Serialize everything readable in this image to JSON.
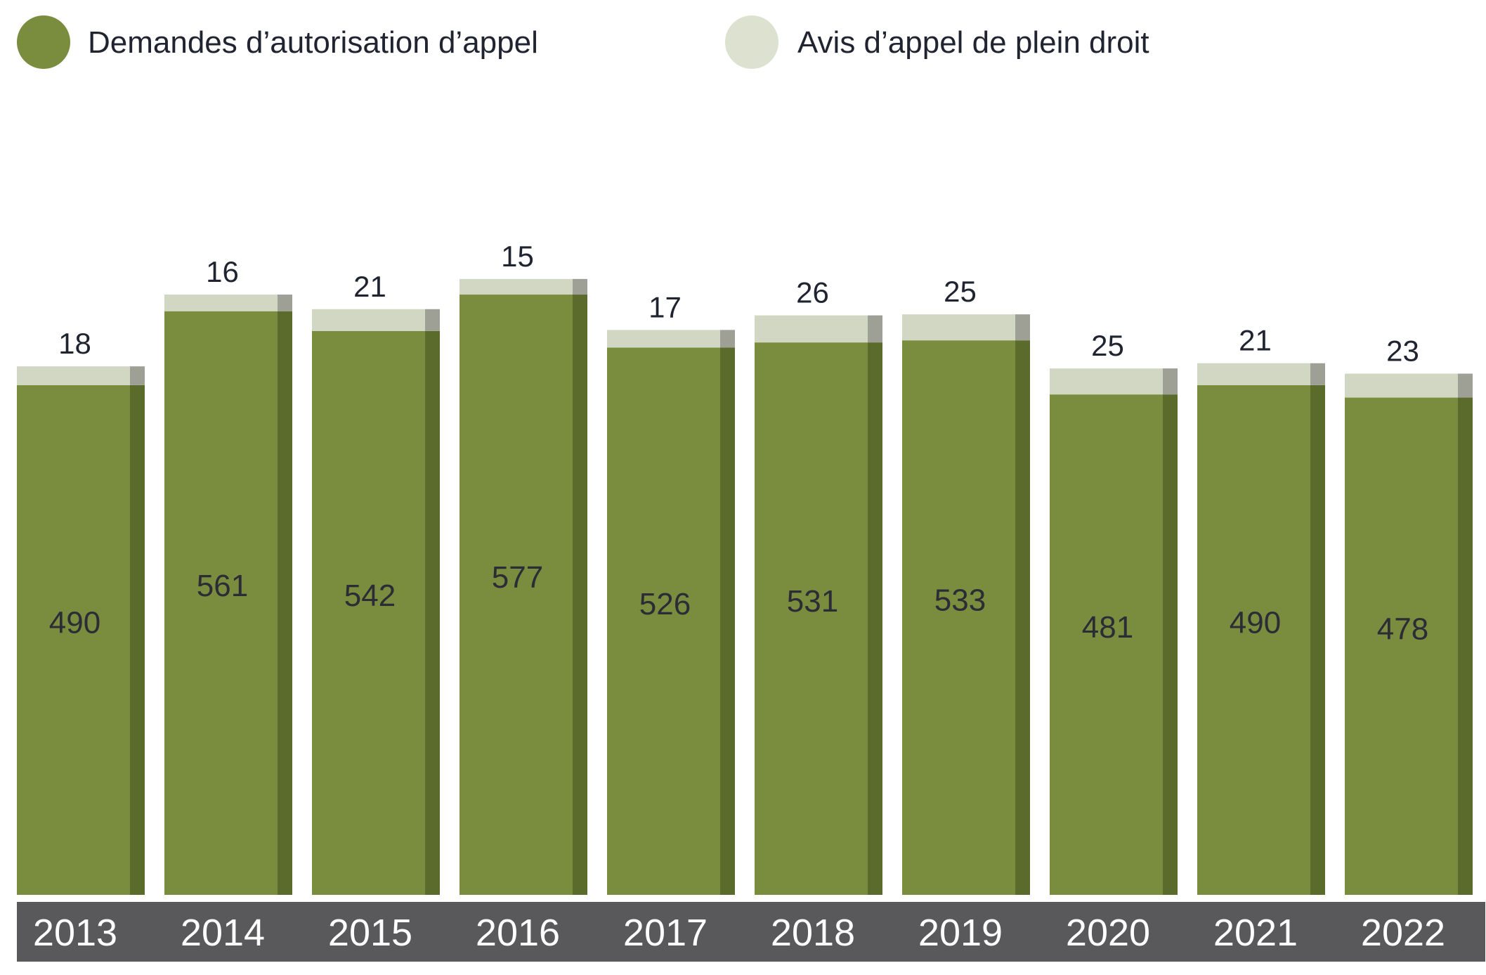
{
  "colors": {
    "primary": "#7a8c3d",
    "primary_edge": "#5b6b2c",
    "secondary": "#d2d7c4",
    "secondary_edge": "#9ea095",
    "axis_band": "#59595b"
  },
  "chart_data": {
    "type": "bar",
    "stacked": true,
    "categories": [
      "2013",
      "2014",
      "2015",
      "2016",
      "2017",
      "2018",
      "2019",
      "2020",
      "2021",
      "2022"
    ],
    "series": [
      {
        "name": "Demandes d’autorisation d’appel",
        "values": [
          490,
          561,
          542,
          577,
          526,
          531,
          533,
          481,
          490,
          478
        ]
      },
      {
        "name": "Avis d’appel de plein droit",
        "values": [
          18,
          16,
          21,
          15,
          17,
          26,
          25,
          25,
          21,
          23
        ]
      }
    ],
    "legend_position": "top-left"
  }
}
